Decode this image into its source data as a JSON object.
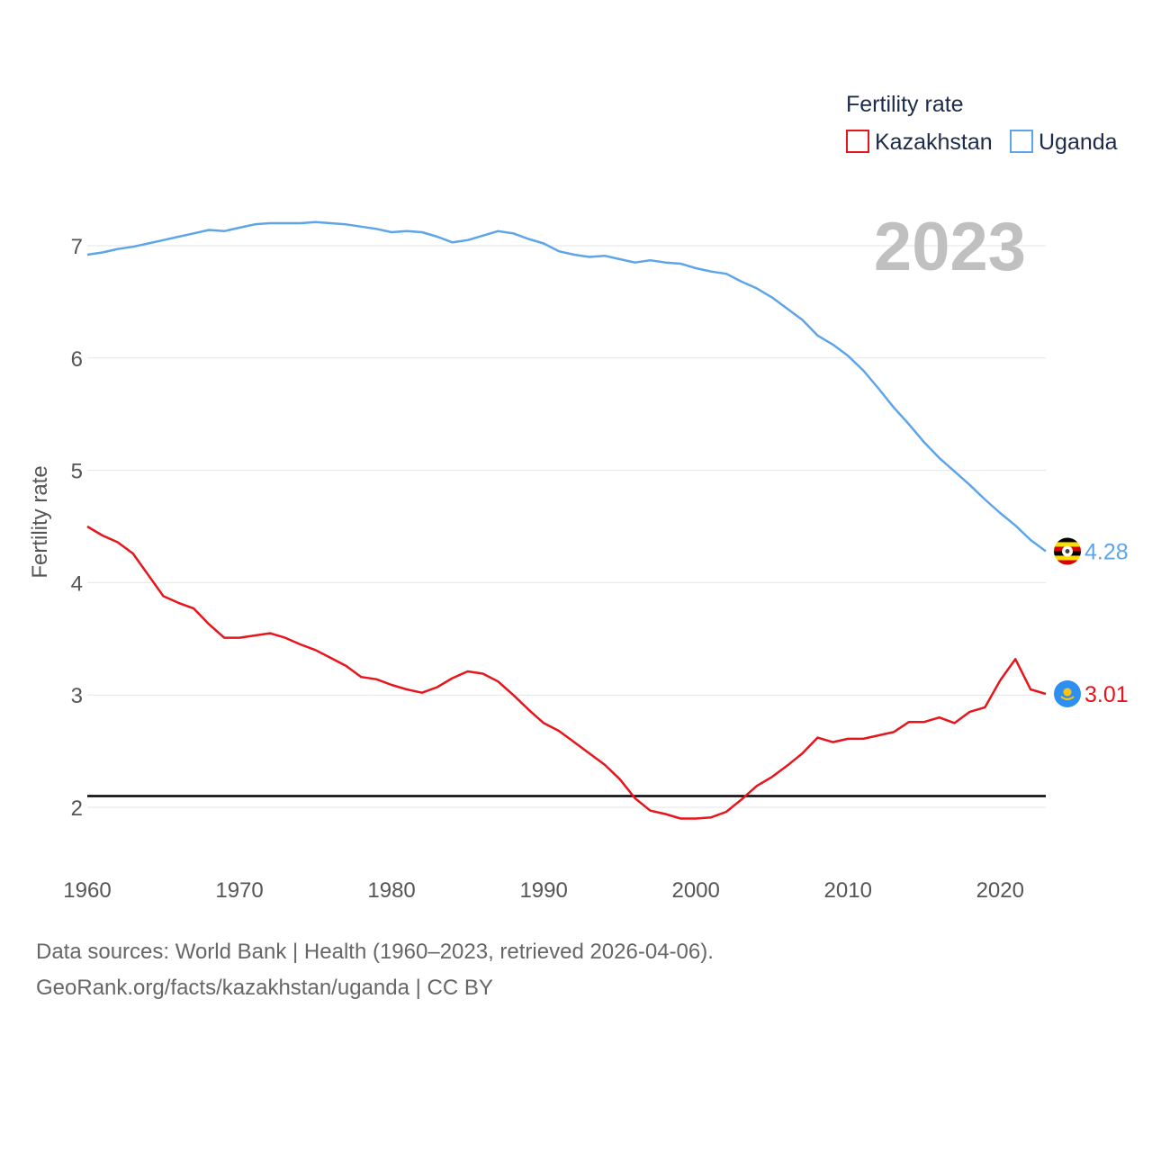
{
  "chart_data": {
    "type": "line",
    "title": "Fertility rate",
    "ylabel": "Fertility rate",
    "xlabel": "",
    "xlim": [
      1960,
      2023
    ],
    "ylim": [
      1.5,
      7.8
    ],
    "yticks": [
      2,
      3,
      4,
      5,
      6,
      7
    ],
    "xticks": [
      1960,
      1970,
      1980,
      1990,
      2000,
      2010,
      2020
    ],
    "current_year": "2023",
    "reference_line": {
      "value": 2.1,
      "color": "#000000"
    },
    "x": [
      1960,
      1961,
      1962,
      1963,
      1964,
      1965,
      1966,
      1967,
      1968,
      1969,
      1970,
      1971,
      1972,
      1973,
      1974,
      1975,
      1976,
      1977,
      1978,
      1979,
      1980,
      1981,
      1982,
      1983,
      1984,
      1985,
      1986,
      1987,
      1988,
      1989,
      1990,
      1991,
      1992,
      1993,
      1994,
      1995,
      1996,
      1997,
      1998,
      1999,
      2000,
      2001,
      2002,
      2003,
      2004,
      2005,
      2006,
      2007,
      2008,
      2009,
      2010,
      2011,
      2012,
      2013,
      2014,
      2015,
      2016,
      2017,
      2018,
      2019,
      2020,
      2021,
      2022,
      2023
    ],
    "series": [
      {
        "name": "Kazakhstan",
        "color": "#e8141b",
        "end_label": "3.01",
        "flag": "kazakhstan-flag",
        "values": [
          4.5,
          4.42,
          4.36,
          4.26,
          4.07,
          3.88,
          3.82,
          3.77,
          3.63,
          3.51,
          3.51,
          3.53,
          3.55,
          3.51,
          3.45,
          3.4,
          3.33,
          3.26,
          3.16,
          3.14,
          3.09,
          3.05,
          3.02,
          3.07,
          3.15,
          3.21,
          3.19,
          3.12,
          3.0,
          2.87,
          2.75,
          2.68,
          2.58,
          2.48,
          2.38,
          2.25,
          2.08,
          1.97,
          1.94,
          1.9,
          1.9,
          1.91,
          1.96,
          2.07,
          2.19,
          2.27,
          2.37,
          2.48,
          2.62,
          2.58,
          2.61,
          2.61,
          2.64,
          2.67,
          2.76,
          2.76,
          2.8,
          2.75,
          2.85,
          2.89,
          3.13,
          3.32,
          3.05,
          3.01
        ]
      },
      {
        "name": "Uganda",
        "color": "#5da5e8",
        "end_label": "4.28",
        "flag": "uganda-flag",
        "values": [
          6.92,
          6.94,
          6.97,
          6.99,
          7.02,
          7.05,
          7.08,
          7.11,
          7.14,
          7.13,
          7.16,
          7.19,
          7.2,
          7.2,
          7.2,
          7.21,
          7.2,
          7.19,
          7.17,
          7.15,
          7.12,
          7.13,
          7.12,
          7.08,
          7.03,
          7.05,
          7.09,
          7.13,
          7.11,
          7.06,
          7.02,
          6.95,
          6.92,
          6.9,
          6.91,
          6.88,
          6.85,
          6.87,
          6.85,
          6.84,
          6.8,
          6.77,
          6.75,
          6.68,
          6.62,
          6.54,
          6.44,
          6.34,
          6.2,
          6.12,
          6.02,
          5.89,
          5.73,
          5.56,
          5.41,
          5.25,
          5.11,
          4.99,
          4.87,
          4.74,
          4.62,
          4.51,
          4.38,
          4.28
        ]
      }
    ]
  },
  "legend": {
    "title": "Fertility rate",
    "items": [
      "Kazakhstan",
      "Uganda"
    ]
  },
  "footer": {
    "line1": "Data sources: World Bank | Health (1960–2023, retrieved 2026-04-06).",
    "line2": "GeoRank.org/facts/kazakhstan/uganda | CC BY"
  }
}
